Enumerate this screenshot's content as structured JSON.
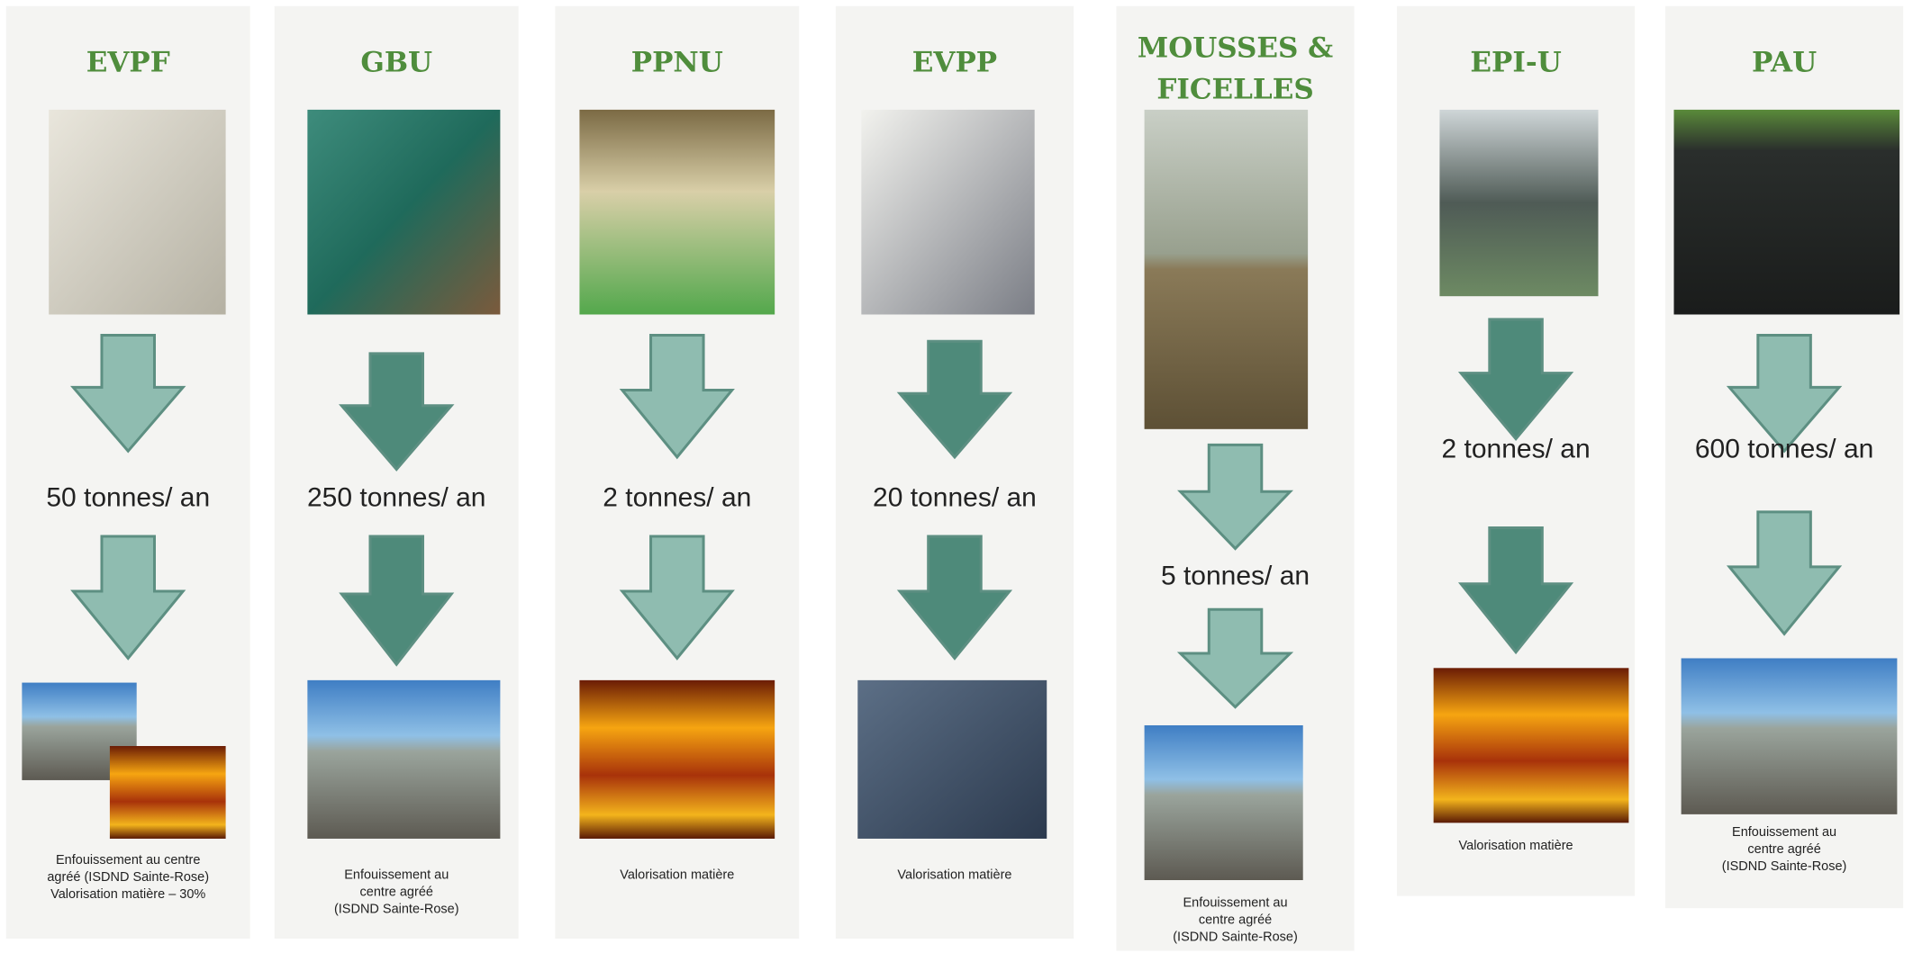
{
  "columns": [
    {
      "title": [
        "EVPF"
      ],
      "tonnage": "50 tonnes/ an",
      "destination": [
        "Enfouissement au centre",
        "agréé (ISDND Sainte-Rose)",
        "Valorisation matière – 30%"
      ]
    },
    {
      "title": [
        "GBU"
      ],
      "tonnage": "250 tonnes/ an",
      "destination": [
        "Enfouissement au",
        "centre agréé",
        "(ISDND Sainte-Rose)"
      ]
    },
    {
      "title": [
        "PPNU"
      ],
      "tonnage": "2 tonnes/ an",
      "destination": [
        "Valorisation matière"
      ]
    },
    {
      "title": [
        "EVPP"
      ],
      "tonnage": "20 tonnes/ an",
      "destination": [
        "Valorisation matière"
      ]
    },
    {
      "title": [
        "MOUSSES &",
        "FICELLES"
      ],
      "tonnage": "5 tonnes/ an",
      "destination": [
        "Enfouissement au",
        "centre agréé",
        "(ISDND Sainte-Rose)"
      ]
    },
    {
      "title": [
        "EPI-U"
      ],
      "tonnage": "2 tonnes/ an",
      "destination": [
        "Valorisation matière"
      ]
    },
    {
      "title": [
        "PAU"
      ],
      "tonnage": "600 tonnes/ an",
      "destination": [
        "Enfouissement au",
        "centre agréé",
        "(ISDND Sainte-Rose)"
      ]
    }
  ]
}
